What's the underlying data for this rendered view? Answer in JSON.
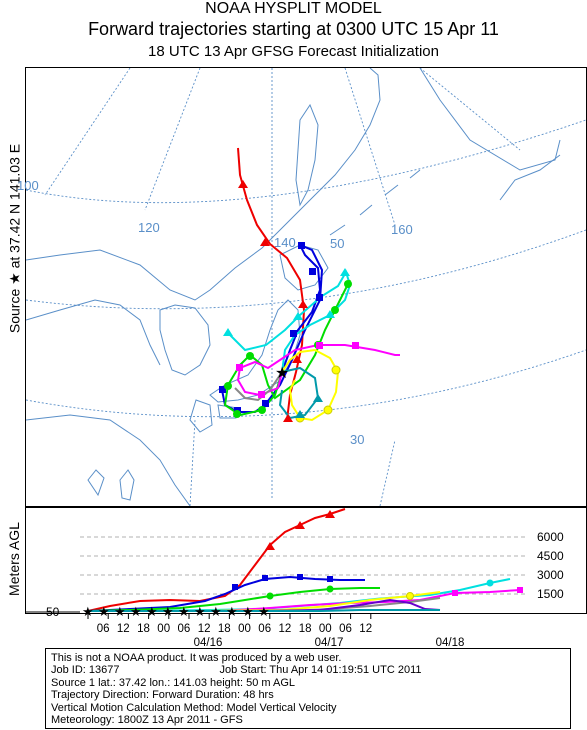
{
  "header": {
    "line1": "NOAA HYSPLIT MODEL",
    "line2": "Forward trajectories starting at 0300 UTC 15 Apr 11",
    "line3": "18 UTC 13 Apr    GFSG  Forecast Initialization"
  },
  "source_label": "Source ★ at  37.42 N  141.03 E",
  "map": {
    "lon_labels": [
      "100",
      "120",
      "140",
      "160"
    ],
    "lat_labels": [
      "50",
      "40",
      "30"
    ]
  },
  "profile": {
    "ylabel": "Meters AGL",
    "height_labels": [
      "6000",
      "4500",
      "3000",
      "1500"
    ],
    "release_height": "50",
    "hour_ticks": [
      "06",
      "12",
      "18",
      "00",
      "06",
      "12",
      "18",
      "00",
      "06",
      "12",
      "18",
      "00",
      "06",
      "12"
    ],
    "date_labels": [
      "04/16",
      "04/17",
      "04/18"
    ]
  },
  "colors": {
    "red": "#ee0000",
    "blue": "#0000dd",
    "green": "#00dd00",
    "cyan": "#00e0e0",
    "magenta": "#ff00ff",
    "yellow": "#ffff00",
    "gray": "#888888",
    "purple": "#6600cc",
    "teal": "#0099aa",
    "map_lines": "#5a8fc8"
  },
  "info": {
    "disclaimer": "This is not a NOAA product. It was produced by a web user.",
    "job_id": "Job ID: 13677",
    "job_start": "Job Start: Thu Apr 14 01:19:51 UTC 2011",
    "source": "Source 1      lat.: 37.42    lon.: 141.03      height: 50 m AGL",
    "direction": "Trajectory Direction: Forward       Duration: 48 hrs",
    "vertical": "Vertical Motion Calculation Method:        Model Vertical Velocity",
    "meteorology": "Meteorology: 1800Z 13 Apr 2011 - GFS"
  }
}
